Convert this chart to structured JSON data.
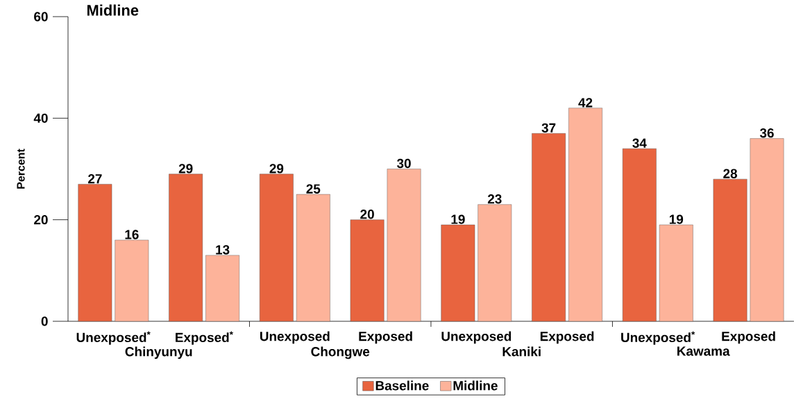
{
  "chart_data": {
    "type": "bar",
    "title": "Midline",
    "ylabel": "Percent",
    "categories": [
      "Unexposed$^{*}$",
      "Exposed$^{*}$",
      "Unexposed",
      "Exposed",
      "Unexposed",
      "Exposed",
      "Unexposed$^{*}$",
      "Exposed"
    ],
    "series": [
      {
        "name": "Baseline",
        "color": "#e8643f",
        "values": [
          27,
          29,
          29,
          20,
          19,
          37,
          34,
          28
        ]
      },
      {
        "name": "Midline",
        "color": "#fdb39a",
        "values": [
          16,
          13,
          25,
          30,
          23,
          42,
          19,
          36
        ]
      }
    ],
    "annotations": [
      "Chinyunyu",
      "Chongwe",
      "Kaniki",
      "Kawama"
    ],
    "ylim": [
      0,
      60
    ],
    "yticks": [
      0,
      20,
      40,
      60
    ],
    "data_labels": true,
    "legend": "bottom",
    "grid": false
  }
}
